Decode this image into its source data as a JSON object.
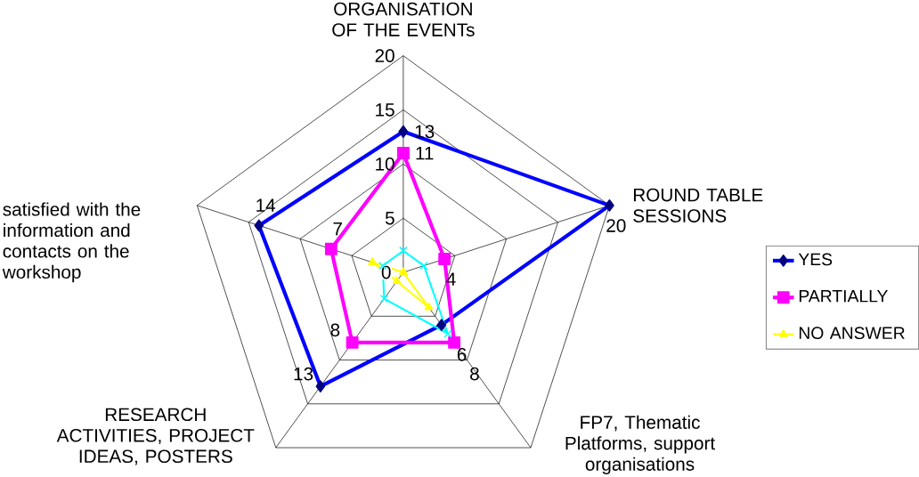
{
  "chart_data": {
    "type": "radar",
    "categories": [
      "ORGANISATION OF THE EVENTs",
      "ROUND TABLE SESSIONS",
      "FP7, Thematic Platforms, support organisations",
      "RESEARCH ACTIVITIES, PROJECT IDEAS, POSTERS",
      "satisfied with the information and contacts on the workshop"
    ],
    "series": [
      {
        "name": "YES",
        "color": "#0000ff",
        "marker": "diamond",
        "values": [
          13,
          20,
          6,
          13,
          14
        ],
        "value_labels": [
          "13",
          "20",
          "6",
          "13",
          "14"
        ]
      },
      {
        "name": "PARTIALLY",
        "color": "#ff00ff",
        "marker": "square",
        "values": [
          11,
          4,
          8,
          8,
          7
        ],
        "value_labels": [
          "11",
          "4",
          "8",
          "8",
          "7"
        ]
      },
      {
        "name": "NO ANSWER",
        "color": "#ffff00",
        "marker": "triangle",
        "values": [
          0,
          0,
          4,
          1,
          3
        ]
      },
      {
        "color": "#00ffff",
        "marker": "cross",
        "values": [
          2,
          2,
          7,
          3,
          2
        ]
      }
    ],
    "ylim": [
      0,
      20
    ],
    "yticks": [
      0,
      5,
      10,
      15,
      20
    ],
    "grid": true,
    "legend": "right"
  }
}
